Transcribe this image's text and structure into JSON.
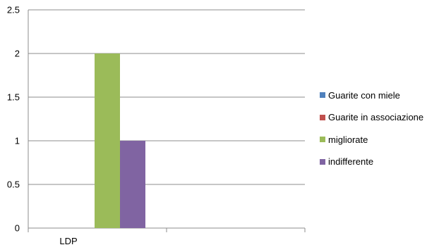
{
  "chart_data": {
    "type": "bar",
    "categories": [
      "LDP",
      ""
    ],
    "series": [
      {
        "name": "Guarite con miele",
        "values": [
          0,
          0
        ],
        "color": "#4F81BD"
      },
      {
        "name": "Guarite in associazione",
        "values": [
          0,
          0
        ],
        "color": "#C0504D"
      },
      {
        "name": "migliorate",
        "values": [
          2,
          0
        ],
        "color": "#9BBB59"
      },
      {
        "name": "indifferente",
        "values": [
          1,
          0
        ],
        "color": "#8064A2"
      }
    ],
    "ylim": [
      0,
      2.5
    ],
    "yticks": [
      "0",
      "0.5",
      "1",
      "1.5",
      "2",
      "2.5"
    ],
    "title": "",
    "xlabel": "",
    "ylabel": "",
    "grid": true,
    "legend_position": "right"
  }
}
